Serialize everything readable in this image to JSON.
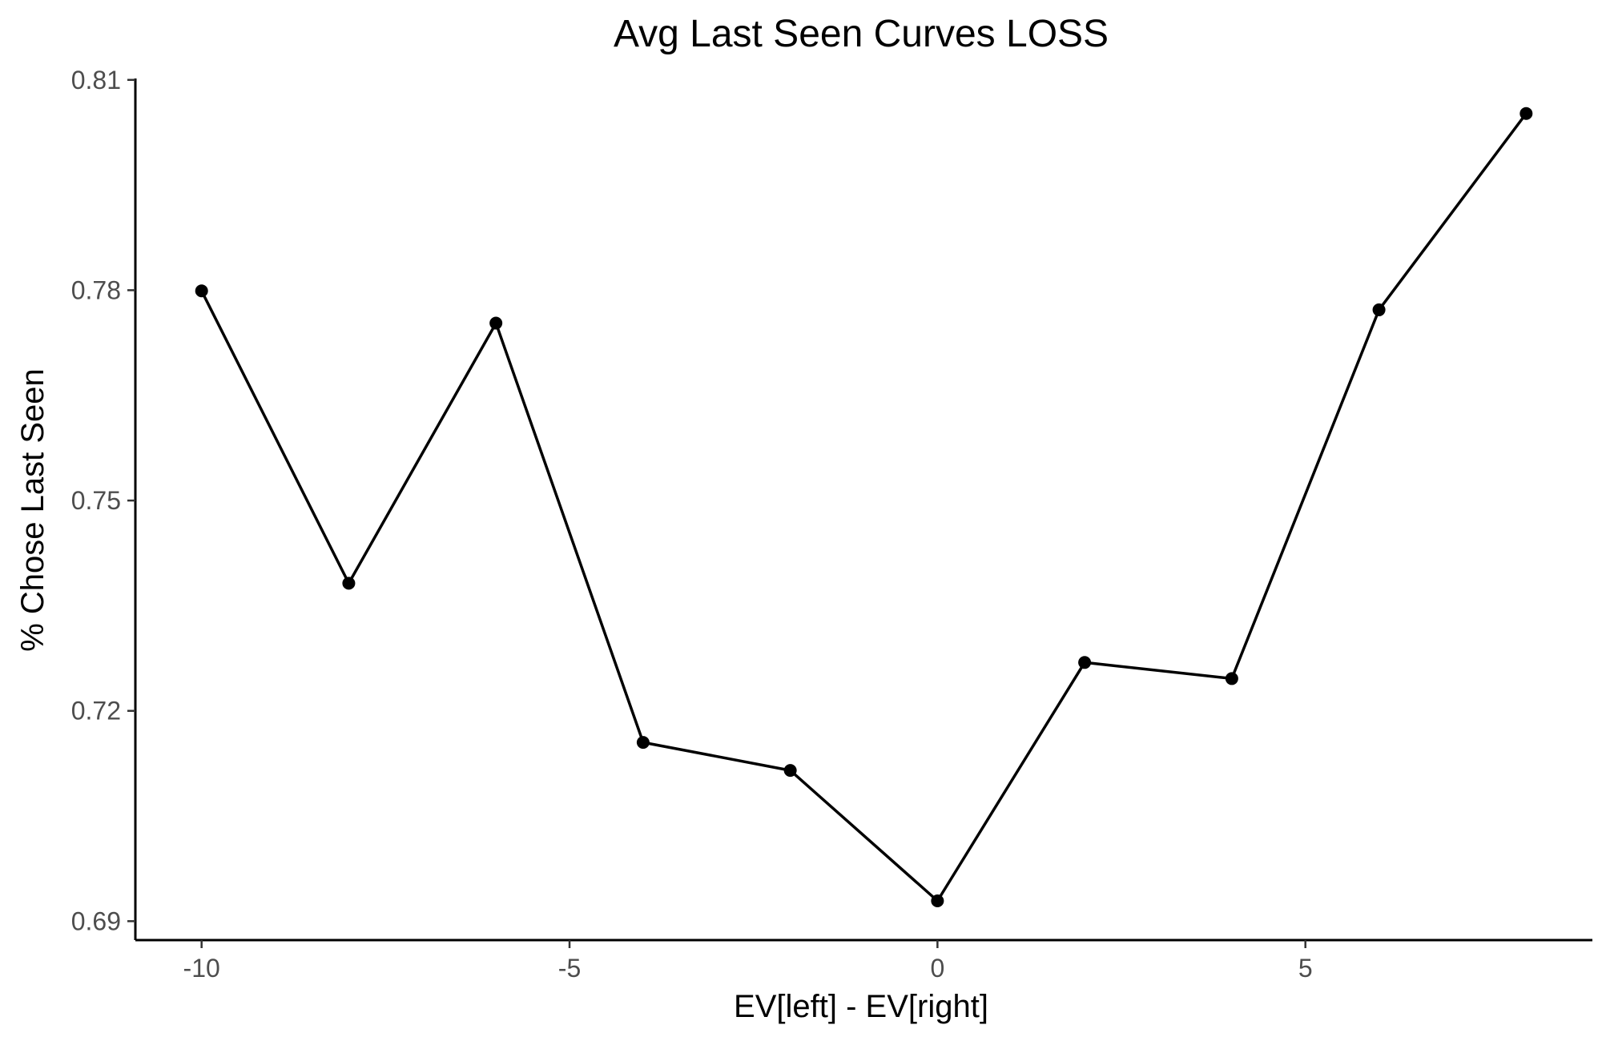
{
  "chart_data": {
    "type": "line",
    "title": "Avg Last Seen Curves LOSS",
    "xlabel": "EV[left] - EV[right]",
    "ylabel": "% Chose Last Seen",
    "xlim": [
      -10.9,
      8.9
    ],
    "ylim": [
      0.6873,
      0.8102
    ],
    "x_ticks": [
      -10,
      -5,
      0,
      5
    ],
    "x_tick_labels": [
      "-10",
      "-5",
      "0",
      "5"
    ],
    "y_ticks": [
      0.69,
      0.72,
      0.75,
      0.78,
      0.81
    ],
    "y_tick_labels": [
      "0.69",
      "0.72",
      "0.75",
      "0.78",
      "0.81"
    ],
    "grid": false,
    "legend": "none",
    "series": [
      {
        "color": "#000000",
        "x": [
          -10,
          -8,
          -6,
          -4,
          -2,
          0,
          2,
          4,
          6,
          8
        ],
        "y": [
          0.7799,
          0.7382,
          0.7753,
          0.7155,
          0.7115,
          0.6929,
          0.7269,
          0.7246,
          0.7772,
          0.8052
        ]
      }
    ]
  }
}
